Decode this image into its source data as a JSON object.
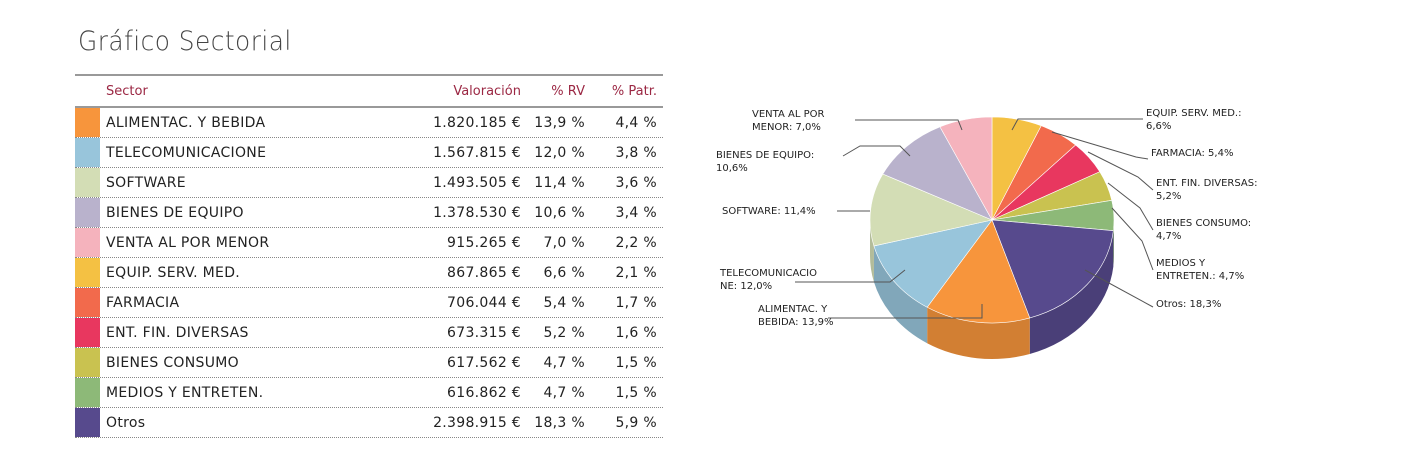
{
  "title": "Gráfico Sectorial",
  "headers": {
    "sector": "Sector",
    "valoracion": "Valoración",
    "rv": "% RV",
    "patr": "% Patr."
  },
  "chart_data": {
    "type": "pie",
    "title": "Gráfico Sectorial",
    "rows": [
      {
        "sector": "ALIMENTAC. Y BEBIDA",
        "valoracion": "1.820.185 €",
        "rv": "13,9 %",
        "patr": "4,4 %",
        "pct": 13.9,
        "color": "#f7953c",
        "label": [
          "ALIMENTAC. Y",
          "BEBIDA: 13,9%"
        ]
      },
      {
        "sector": "TELECOMUNICACIONE",
        "valoracion": "1.567.815 €",
        "rv": "12,0 %",
        "patr": "3,8 %",
        "pct": 12.0,
        "color": "#98c5db",
        "label": [
          "TELECOMUNICACIO",
          "NE: 12,0%"
        ]
      },
      {
        "sector": "SOFTWARE",
        "valoracion": "1.493.505 €",
        "rv": "11,4 %",
        "patr": "3,6 %",
        "pct": 11.4,
        "color": "#d3ddb5",
        "label": [
          "SOFTWARE: 11,4%"
        ]
      },
      {
        "sector": "BIENES DE EQUIPO",
        "valoracion": "1.378.530 €",
        "rv": "10,6 %",
        "patr": "3,4 %",
        "pct": 10.6,
        "color": "#b9b2cc",
        "label": [
          "BIENES DE EQUIPO:",
          "10,6%"
        ]
      },
      {
        "sector": "VENTA AL POR MENOR",
        "valoracion": "915.265 €",
        "rv": "7,0 %",
        "patr": "2,2 %",
        "pct": 7.0,
        "color": "#f5b3bd",
        "label": [
          "VENTA AL POR",
          "MENOR: 7,0%"
        ]
      },
      {
        "sector": "EQUIP. SERV. MED.",
        "valoracion": "867.865 €",
        "rv": "6,6 %",
        "patr": "2,1 %",
        "pct": 6.6,
        "color": "#f4c143",
        "label": [
          "EQUIP. SERV. MED.:",
          "6,6%"
        ]
      },
      {
        "sector": "FARMACIA",
        "valoracion": "706.044 €",
        "rv": "5,4 %",
        "patr": "1,7 %",
        "pct": 5.4,
        "color": "#f26a4c",
        "label": [
          "FARMACIA: 5,4%"
        ]
      },
      {
        "sector": "ENT. FIN. DIVERSAS",
        "valoracion": "673.315 €",
        "rv": "5,2 %",
        "patr": "1,6 %",
        "pct": 5.2,
        "color": "#e8375f",
        "label": [
          "ENT. FIN. DIVERSAS:",
          "5,2%"
        ]
      },
      {
        "sector": "BIENES CONSUMO",
        "valoracion": "617.562 €",
        "rv": "4,7 %",
        "patr": "1,5 %",
        "pct": 4.7,
        "color": "#c9c250",
        "label": [
          "BIENES CONSUMO:",
          "4,7%"
        ]
      },
      {
        "sector": "MEDIOS Y ENTRETEN.",
        "valoracion": "616.862 €",
        "rv": "4,7 %",
        "patr": "1,5 %",
        "pct": 4.7,
        "color": "#8db978",
        "label": [
          "MEDIOS Y",
          "ENTRETEN.: 4,7%"
        ]
      },
      {
        "sector": "Otros",
        "valoracion": "2.398.915 €",
        "rv": "18,3 %",
        "patr": "5,9 %",
        "pct": 18.3,
        "color": "#574a8d",
        "label": [
          "Otros: 18,3%"
        ]
      }
    ]
  }
}
